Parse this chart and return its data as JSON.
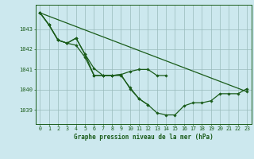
{
  "background_color": "#cce8ee",
  "grid_color": "#99bbbb",
  "line_color": "#1a5c1a",
  "title": "Graphe pression niveau de la mer (hPa)",
  "xlim": [
    -0.5,
    23.5
  ],
  "ylim": [
    1038.3,
    1044.2
  ],
  "yticks": [
    1039,
    1040,
    1041,
    1042,
    1043
  ],
  "xticks": [
    0,
    1,
    2,
    3,
    4,
    5,
    6,
    7,
    8,
    9,
    10,
    11,
    12,
    13,
    14,
    15,
    16,
    17,
    18,
    19,
    20,
    21,
    22,
    23
  ],
  "lines": [
    {
      "x": [
        0,
        23
      ],
      "y": [
        1043.8,
        1039.9
      ]
    },
    {
      "x": [
        0,
        1,
        2,
        3,
        4,
        5,
        6,
        7,
        8,
        9,
        10,
        11,
        12,
        13,
        14
      ],
      "y": [
        1043.8,
        1043.2,
        1042.45,
        1042.3,
        1042.55,
        1041.75,
        1041.05,
        1040.7,
        1040.7,
        1040.75,
        1040.9,
        1041.0,
        1041.0,
        1040.7,
        1040.7
      ]
    },
    {
      "x": [
        0,
        1,
        2,
        3,
        4,
        5,
        6,
        7,
        8,
        9,
        10,
        11,
        12
      ],
      "y": [
        1043.8,
        1043.2,
        1042.45,
        1042.3,
        1042.2,
        1041.6,
        1040.7,
        1040.7,
        1040.7,
        1040.7,
        1040.1,
        1039.55,
        1039.25
      ]
    },
    {
      "x": [
        0,
        1,
        2,
        3,
        4,
        5,
        6,
        7,
        8,
        9,
        10,
        11,
        12,
        13,
        14,
        15,
        16,
        17,
        18,
        19,
        20,
        21,
        22,
        23
      ],
      "y": [
        1043.8,
        1043.2,
        1042.45,
        1042.3,
        1042.55,
        1041.75,
        1040.7,
        1040.7,
        1040.7,
        1040.75,
        1040.05,
        1039.55,
        1039.25,
        1038.85,
        1038.75,
        1038.75,
        1039.2,
        1039.35,
        1039.35,
        1039.45,
        1039.8,
        1039.8,
        1039.8,
        1040.05
      ]
    }
  ]
}
